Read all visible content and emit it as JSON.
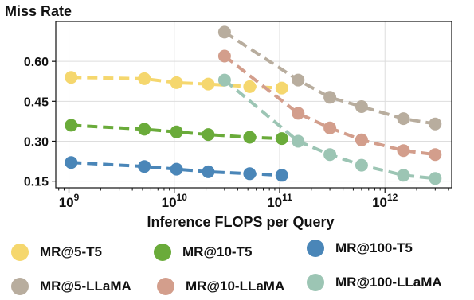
{
  "chart_data": {
    "type": "line",
    "ylabel": "Miss Rate",
    "xlabel": "Inference FLOPS per Query",
    "x_scale": "log",
    "xlim": [
      750000000.0,
      4300000000000.0
    ],
    "ylim": [
      0.125,
      0.75
    ],
    "x_ticks": [
      {
        "value": 1000000000.0,
        "base": "10",
        "exp": "9"
      },
      {
        "value": 10000000000.0,
        "base": "10",
        "exp": "10"
      },
      {
        "value": 100000000000.0,
        "base": "10",
        "exp": "11"
      },
      {
        "value": 1000000000000.0,
        "base": "10",
        "exp": "12"
      }
    ],
    "y_ticks": [
      {
        "value": 0.15,
        "label": "0.15"
      },
      {
        "value": 0.3,
        "label": "0.30"
      },
      {
        "value": 0.45,
        "label": "0.45"
      },
      {
        "value": 0.6,
        "label": "0.60"
      }
    ],
    "grid": true,
    "series": [
      {
        "name": "MR@5-T5",
        "color": "#f5d76e",
        "x": [
          1050000000.0,
          5200000000.0,
          10500000000.0,
          21000000000.0,
          52000000000.0,
          105000000000.0
        ],
        "y": [
          0.54,
          0.535,
          0.52,
          0.515,
          0.505,
          0.5
        ]
      },
      {
        "name": "MR@10-T5",
        "color": "#6aab3a",
        "x": [
          1050000000.0,
          5200000000.0,
          10500000000.0,
          21000000000.0,
          52000000000.0,
          105000000000.0
        ],
        "y": [
          0.36,
          0.345,
          0.335,
          0.325,
          0.315,
          0.31
        ]
      },
      {
        "name": "MR@100-T5",
        "color": "#4a86b8",
        "x": [
          1050000000.0,
          5200000000.0,
          10500000000.0,
          21000000000.0,
          52000000000.0,
          105000000000.0
        ],
        "y": [
          0.22,
          0.205,
          0.195,
          0.185,
          0.178,
          0.172
        ]
      },
      {
        "name": "MR@5-LLaMA",
        "color": "#b8ad9e",
        "x": [
          30000000000.0,
          150000000000.0,
          300000000000.0,
          600000000000.0,
          1500000000000.0,
          3000000000000.0
        ],
        "y": [
          0.71,
          0.53,
          0.465,
          0.43,
          0.385,
          0.365
        ]
      },
      {
        "name": "MR@10-LLaMA",
        "color": "#d39e8c",
        "x": [
          30000000000.0,
          150000000000.0,
          300000000000.0,
          600000000000.0,
          1500000000000.0,
          3000000000000.0
        ],
        "y": [
          0.62,
          0.405,
          0.35,
          0.305,
          0.265,
          0.25
        ]
      },
      {
        "name": "MR@100-LLaMA",
        "color": "#9cc5b4",
        "x": [
          30000000000.0,
          150000000000.0,
          300000000000.0,
          600000000000.0,
          1500000000000.0,
          3000000000000.0
        ],
        "y": [
          0.53,
          0.3,
          0.25,
          0.21,
          0.172,
          0.16
        ]
      }
    ]
  }
}
